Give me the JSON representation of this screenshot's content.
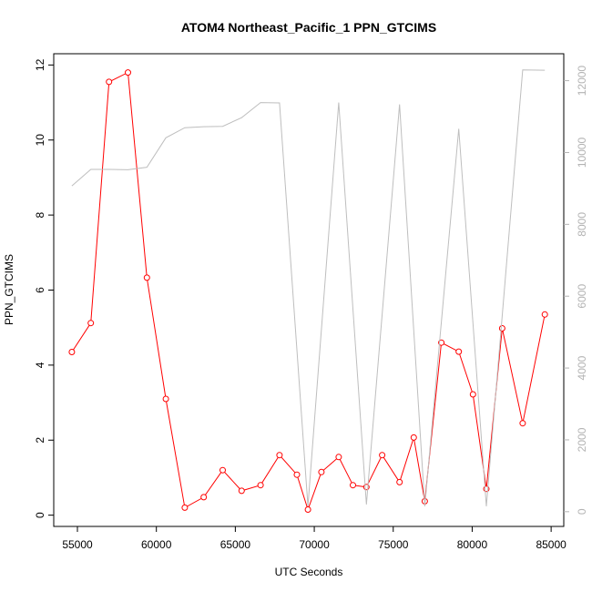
{
  "chart_data": {
    "type": "line",
    "title": "ATOM4 Northeast_Pacific_1 PPN_GTCIMS",
    "xlabel": "UTC Seconds",
    "ylabel": "PPN_GTCIMS",
    "xlim": [
      53500,
      85800
    ],
    "ylim": [
      -0.3,
      12.3
    ],
    "y2lim": [
      -410,
      12750
    ],
    "x_ticks": [
      55000,
      60000,
      65000,
      70000,
      75000,
      80000,
      85000
    ],
    "x_tick_labels": [
      "55000",
      "60000",
      "65000",
      "70000",
      "75000",
      "80000",
      "85000"
    ],
    "y_ticks": [
      0,
      2,
      4,
      6,
      8,
      10,
      12
    ],
    "y_tick_labels": [
      "0",
      "2",
      "4",
      "6",
      "8",
      "10",
      "12"
    ],
    "y2_ticks": [
      0,
      2000,
      4000,
      6000,
      8000,
      10000,
      12000
    ],
    "y2_tick_labels": [
      "0",
      "2000",
      "4000",
      "6000",
      "8000",
      "10000",
      "12000"
    ],
    "grid": false,
    "colors": {
      "ppn": "#ff0000",
      "altitude": "#bebebe",
      "axis": "#000000",
      "axis2": "#b3b3b3"
    },
    "series": [
      {
        "axis": "left",
        "style": "line-markers",
        "x": [
          54650,
          55850,
          57000,
          58200,
          59400,
          60600,
          61800,
          63000,
          64200,
          65400,
          66600,
          67800,
          68900,
          69600,
          70450,
          71550,
          72450,
          73300,
          74300,
          75400,
          76300,
          77000,
          78050,
          79150,
          80050,
          80900,
          81900,
          83200,
          84600
        ],
        "values": [
          4.35,
          5.12,
          11.55,
          11.8,
          6.33,
          3.1,
          0.2,
          0.48,
          1.2,
          0.65,
          0.8,
          1.6,
          1.08,
          0.15,
          1.15,
          1.55,
          0.8,
          0.75,
          1.6,
          0.88,
          2.07,
          0.37,
          4.6,
          4.36,
          3.22,
          0.7,
          4.98,
          2.45,
          5.35
        ]
      },
      {
        "axis": "right",
        "style": "line",
        "x": [
          54650,
          55850,
          57000,
          58200,
          59400,
          60600,
          61800,
          63000,
          64200,
          65400,
          66600,
          67800,
          69600,
          71550,
          73300,
          75400,
          77000,
          79150,
          80900,
          83200,
          84600
        ],
        "values": [
          9070,
          9530,
          9530,
          9520,
          9590,
          10410,
          10690,
          10720,
          10730,
          10970,
          11390,
          11380,
          150,
          11390,
          200,
          11340,
          150,
          10660,
          150,
          12300,
          12290
        ]
      }
    ]
  }
}
